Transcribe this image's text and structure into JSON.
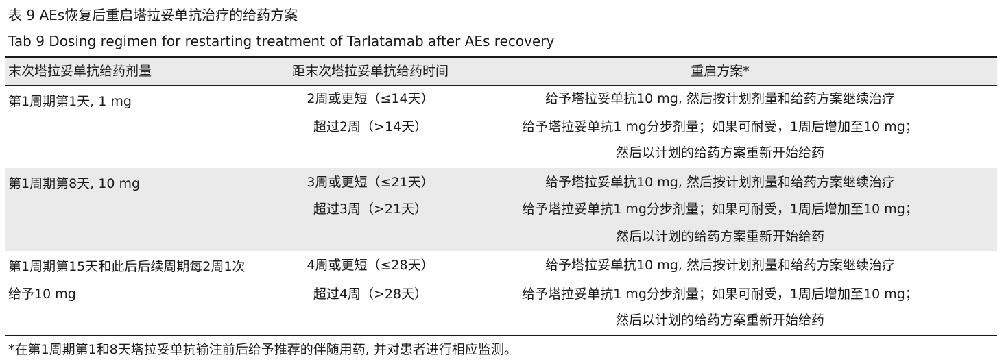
{
  "caption": {
    "cn": "表 9  AEs恢复后重启塔拉妥单抗治疗的给药方案",
    "en": "Tab 9  Dosing regimen for restarting treatment of Tarlatamab after AEs recovery"
  },
  "table": {
    "headers": [
      "末次塔拉妥单抗给药剂量",
      "距末次塔拉妥单抗给药时间",
      "重启方案*"
    ],
    "rows": [
      {
        "dose_lines": [
          "第1周期第1天, 1 mg"
        ],
        "timing": [
          "2周或更短（≤14天）",
          "超过2周（>14天）"
        ],
        "plan": [
          "给予塔拉妥单抗10 mg, 然后按计划剂量和给药方案继续治疗",
          "给予塔拉妥单抗1 mg分步剂量；如果可耐受，1周后增加至10 mg；",
          "然后以计划的给药方案重新开始给药"
        ]
      },
      {
        "dose_lines": [
          "第1周期第8天, 10 mg"
        ],
        "timing": [
          "3周或更短（≤21天）",
          "超过3周（>21天）"
        ],
        "plan": [
          "给予塔拉妥单抗10 mg, 然后按计划剂量和给药方案继续治疗",
          "给予塔拉妥单抗1 mg分步剂量；如果可耐受，1周后增加至10 mg；",
          "然后以计划的给药方案重新开始给药"
        ]
      },
      {
        "dose_lines": [
          "第1周期第15天和此后后续周期每2周1次",
          "给予10 mg"
        ],
        "timing": [
          "4周或更短（≤28天）",
          "超过4周（>28天）"
        ],
        "plan": [
          "给予塔拉妥单抗10 mg, 然后按计划剂量和给药方案继续治疗",
          "给予塔拉妥单抗1 mg分步剂量；如果可耐受，1周后增加至10 mg；",
          "然后以计划的给药方案重新开始给药"
        ]
      }
    ]
  },
  "footnote": "*在第1周期第1和8天塔拉妥单抗输注前后给予推荐的伴随用药, 并对患者进行相应监测。",
  "colors": {
    "band": "#eaeaea",
    "rule": "#1a1a1a",
    "text": "#1a1a1a"
  }
}
